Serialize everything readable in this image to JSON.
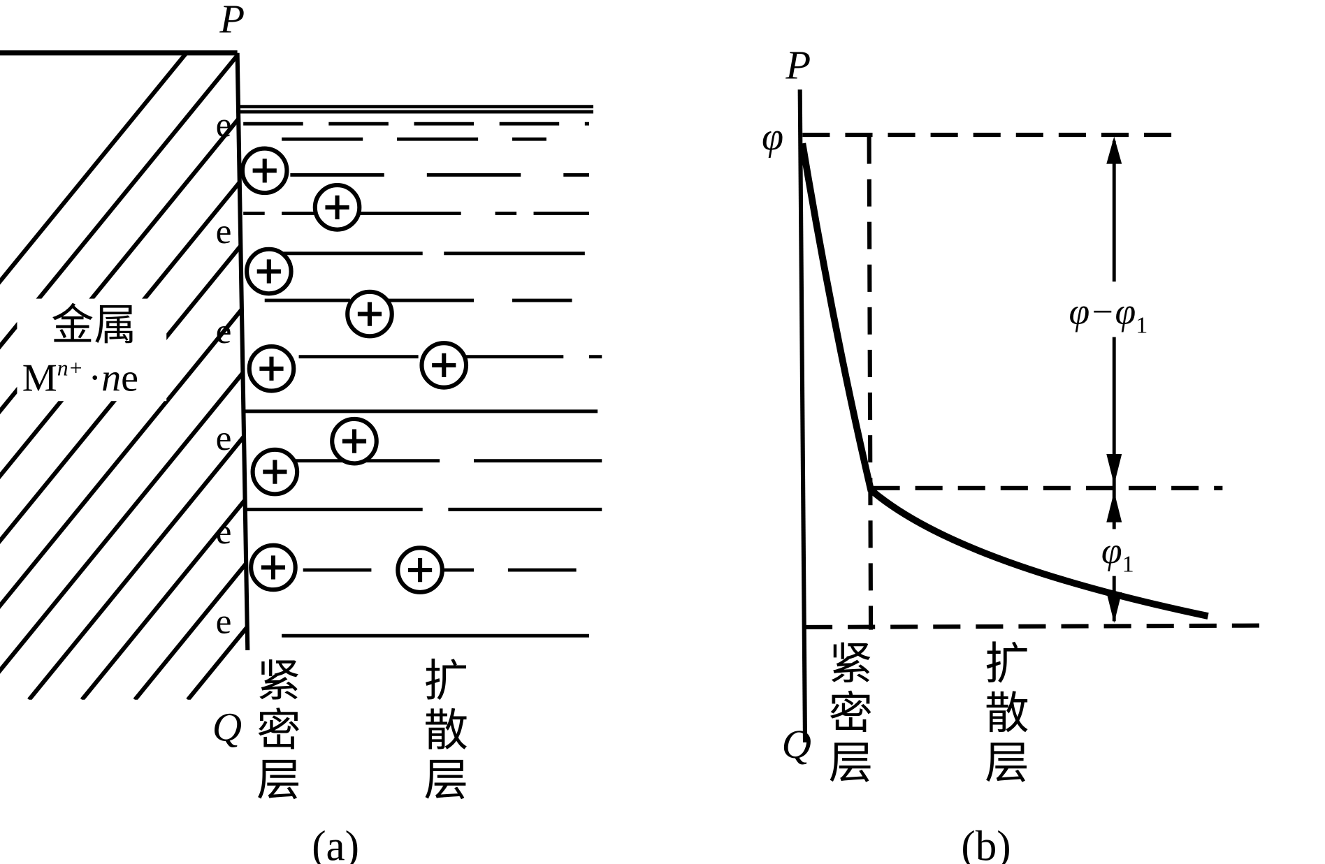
{
  "panel_a": {
    "P": "P",
    "Q": "Q",
    "electrons": [
      "e",
      "e",
      "e",
      "e",
      "e",
      "e"
    ],
    "metal": "金属",
    "formula": {
      "base": "M",
      "sup": "n+",
      "dot": "·",
      "n": "n",
      "e": "e"
    },
    "compact_layer": "紧密层",
    "diffuse_layer": "扩散层",
    "caption": "(a)"
  },
  "panel_b": {
    "P": "P",
    "Q": "Q",
    "phi": "φ",
    "phi_diff": {
      "text": "φ−φ",
      "sub": "1"
    },
    "phi1": {
      "text": "φ",
      "sub": "1"
    },
    "compact_layer": "紧密层",
    "diffuse_layer": "扩散层",
    "caption": "(b)"
  }
}
